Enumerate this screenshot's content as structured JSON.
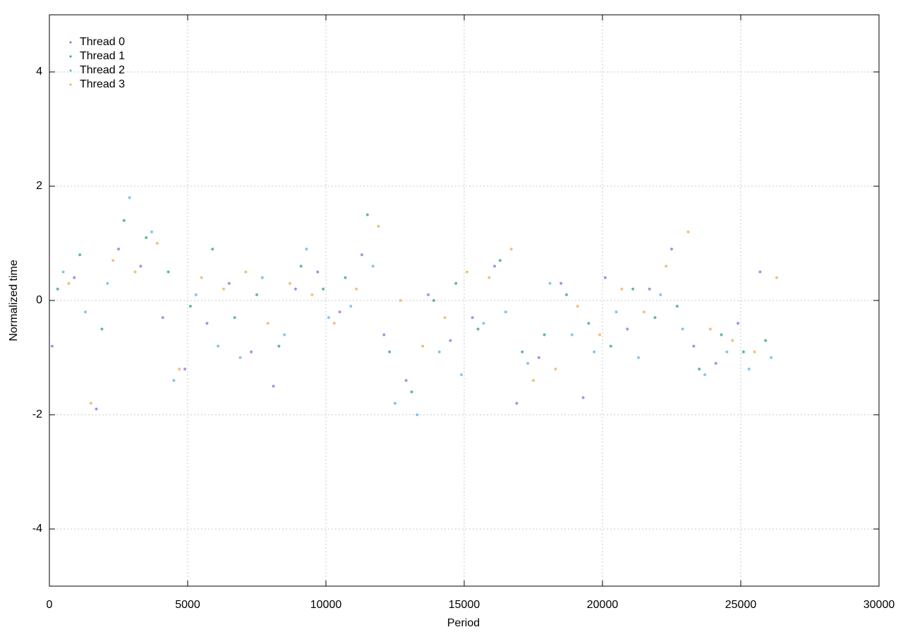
{
  "chart_data": {
    "type": "scatter",
    "x_label": "Period",
    "y_label": "Normalized time",
    "xlim": [
      0,
      30000
    ],
    "ylim": [
      -5,
      5
    ],
    "xticks": [
      0,
      5000,
      10000,
      15000,
      20000,
      25000,
      30000
    ],
    "yticks": [
      -4,
      -2,
      0,
      2,
      4
    ],
    "grid": true,
    "legend": "top-left",
    "series": [
      {
        "name": "Thread 0",
        "color": "#9467d8",
        "x": [
          100,
          900,
          1700,
          2500,
          3300,
          4100,
          4900,
          5700,
          6500,
          7300,
          8100,
          8900,
          9700,
          10500,
          11300,
          12100,
          12900,
          13700,
          14500,
          15300,
          16100,
          16900,
          17700,
          18500,
          19300,
          20100,
          20900,
          21700,
          22500,
          23300,
          24100,
          24900,
          25700
        ],
        "values": [
          -0.8,
          0.4,
          -1.9,
          0.9,
          0.6,
          -0.3,
          -1.2,
          -0.4,
          0.3,
          -0.9,
          -1.5,
          0.2,
          0.5,
          -0.2,
          0.8,
          -0.6,
          -1.4,
          0.1,
          -0.7,
          -0.3,
          0.6,
          -1.8,
          -1.0,
          0.3,
          -1.7,
          0.4,
          -0.5,
          0.2,
          0.9,
          -0.8,
          -1.1,
          -0.4,
          0.5
        ]
      },
      {
        "name": "Thread 1",
        "color": "#2aa37a",
        "x": [
          300,
          1100,
          1900,
          2700,
          3500,
          4300,
          5100,
          5900,
          6700,
          7500,
          8300,
          9100,
          9900,
          10700,
          11500,
          12300,
          13100,
          13900,
          14700,
          15500,
          16300,
          17100,
          17900,
          18700,
          19500,
          20300,
          21100,
          21900,
          22700,
          23500,
          24300,
          25100,
          25900
        ],
        "values": [
          0.2,
          0.8,
          -0.5,
          1.4,
          1.1,
          0.5,
          -0.1,
          0.9,
          -0.3,
          0.1,
          -0.8,
          0.6,
          0.2,
          0.4,
          1.5,
          -0.9,
          -1.6,
          0.0,
          0.3,
          -0.5,
          0.7,
          -0.9,
          -0.6,
          0.1,
          -0.4,
          -0.8,
          0.2,
          -0.3,
          -0.1,
          -1.2,
          -0.6,
          -0.9,
          -0.7
        ]
      },
      {
        "name": "Thread 2",
        "color": "#5ab4e6",
        "x": [
          500,
          1300,
          2100,
          2900,
          3700,
          4500,
          5300,
          6100,
          6900,
          7700,
          8500,
          9300,
          10100,
          10900,
          11700,
          12500,
          13300,
          14100,
          14900,
          15700,
          16500,
          17300,
          18100,
          18900,
          19700,
          20500,
          21300,
          22100,
          22900,
          23700,
          24500,
          25300,
          26100
        ],
        "values": [
          0.5,
          -0.2,
          0.3,
          1.8,
          1.2,
          -1.4,
          0.1,
          -0.8,
          -1.0,
          0.4,
          -0.6,
          0.9,
          -0.3,
          -0.1,
          0.6,
          -1.8,
          -2.0,
          -0.9,
          -1.3,
          -0.4,
          -0.2,
          -1.1,
          0.3,
          -0.6,
          -0.9,
          -0.2,
          -1.0,
          0.1,
          -0.5,
          -1.3,
          -0.9,
          -1.2,
          -1.0
        ]
      },
      {
        "name": "Thread 3",
        "color": "#e8b04a",
        "x": [
          700,
          1500,
          2300,
          3100,
          3900,
          4700,
          5500,
          6300,
          7100,
          7900,
          8700,
          9500,
          10300,
          11100,
          11900,
          12700,
          13500,
          14300,
          15100,
          15900,
          16700,
          17500,
          18300,
          19100,
          19900,
          20700,
          21500,
          22300,
          23100,
          23900,
          24700,
          25500,
          26300
        ],
        "values": [
          0.3,
          -1.8,
          0.7,
          0.5,
          1.0,
          -1.2,
          0.4,
          0.2,
          0.5,
          -0.4,
          0.3,
          0.1,
          -0.4,
          0.2,
          1.3,
          0.0,
          -0.8,
          -0.3,
          0.5,
          0.4,
          0.9,
          -1.4,
          -1.2,
          -0.1,
          -0.6,
          0.2,
          -0.2,
          0.6,
          1.2,
          -0.5,
          -0.7,
          -0.9,
          0.4
        ]
      }
    ]
  }
}
